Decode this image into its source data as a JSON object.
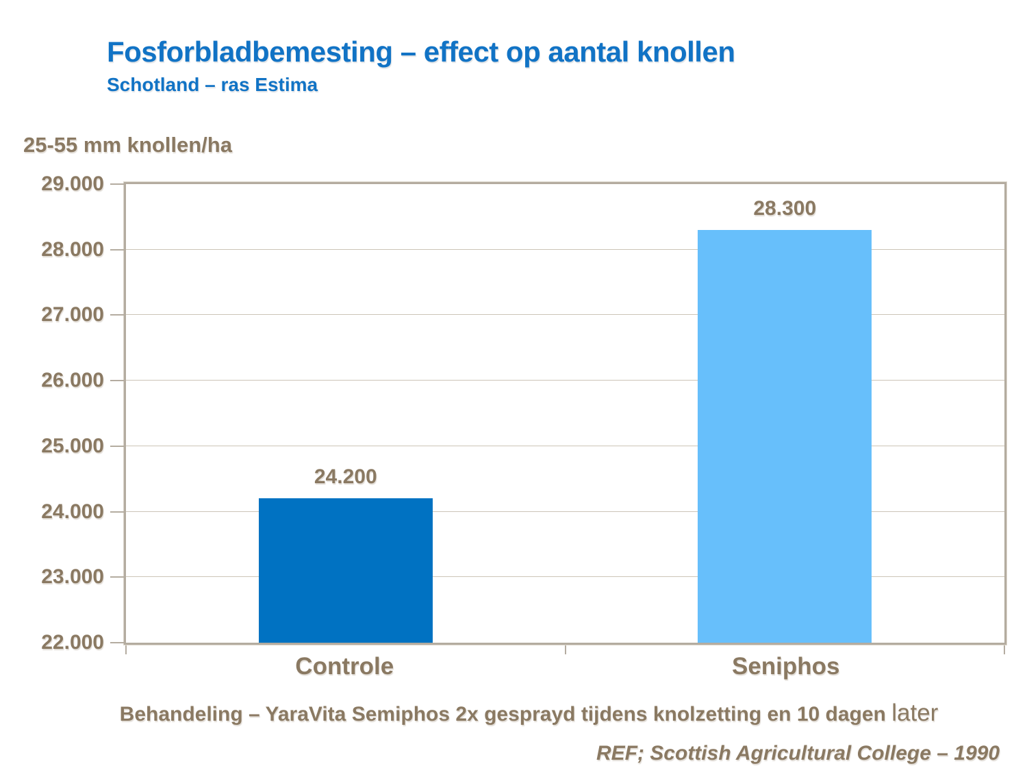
{
  "page": {
    "title": "Fosforbladbemesting – effect op aantal knollen",
    "subtitle": "Schotland – ras Estima",
    "footer_note_prefix": "Behandeling – YaraVita Semiphos 2x gesprayd tijdens knolzetting en 10 dagen ",
    "footer_note_emphasis": "later",
    "footer_ref": "REF; Scottish Agricultural College – 1990"
  },
  "chart_data": {
    "type": "bar",
    "title": "Fosforbladbemesting – effect op aantal knollen",
    "subtitle": "Schotland – ras Estima",
    "ylabel": "25-55 mm knollen/ha",
    "xlabel": "",
    "categories": [
      "Controle",
      "Seniphos"
    ],
    "values": [
      24200,
      28300
    ],
    "value_labels": [
      "24.200",
      "28.300"
    ],
    "bar_colors": [
      "#0072C2",
      "#67BFFB"
    ],
    "ylim": [
      22000,
      29000
    ],
    "ytick_step": 1000,
    "ytick_labels": [
      "22.000",
      "23.000",
      "24.000",
      "25.000",
      "26.000",
      "27.000",
      "28.000",
      "29.000"
    ],
    "grid": true,
    "legend": "none"
  },
  "colors": {
    "title_blue": "#1173C5",
    "text_brown": "#8A7962",
    "plot_border": "#B4ACA0",
    "gridline": "#CCC4B7",
    "background": "#FFFFFF"
  }
}
